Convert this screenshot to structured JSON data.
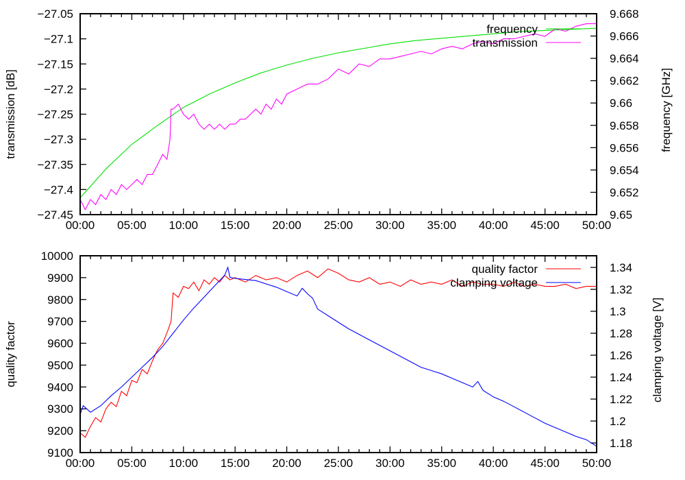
{
  "chart_data": [
    {
      "type": "line",
      "ylabel": "transmission [dB]",
      "y2label": "frequency [GHz]",
      "xlabel": "",
      "xlim": [
        0,
        50
      ],
      "xticks": [
        "00:00",
        "05:00",
        "10:00",
        "15:00",
        "20:00",
        "25:00",
        "30:00",
        "35:00",
        "40:00",
        "45:00",
        "50:00"
      ],
      "ylim": [
        -27.45,
        -27.05
      ],
      "yticks": [
        "-27.45",
        "-27.4",
        "-27.35",
        "-27.3",
        "-27.25",
        "-27.2",
        "-27.15",
        "-27.1",
        "-27.05"
      ],
      "y2lim": [
        9.65,
        9.668
      ],
      "y2ticks": [
        "9.65",
        "9.652",
        "9.654",
        "9.656",
        "9.658",
        "9.66",
        "9.662",
        "9.664",
        "9.666",
        "9.668"
      ],
      "legend_position": "top-right",
      "series": [
        {
          "name": "frequency",
          "axis": "y2",
          "color": "#00e000",
          "x": [
            0,
            2.5,
            5,
            7.5,
            10,
            12.5,
            15,
            17.5,
            20,
            22.5,
            25,
            27.5,
            30,
            32.5,
            35,
            37.5,
            40,
            42.5,
            45,
            47.5,
            50
          ],
          "y": [
            9.6515,
            9.6541,
            9.6563,
            9.658,
            9.6596,
            9.6608,
            9.6618,
            9.6627,
            9.6634,
            9.664,
            9.6645,
            9.6649,
            9.6653,
            9.6656,
            9.6658,
            9.666,
            9.6662,
            9.6664,
            9.6665,
            9.6666,
            9.6667
          ]
        },
        {
          "name": "transmission",
          "axis": "y",
          "color": "#ff00ff",
          "x": [
            0,
            0.5,
            1,
            1.5,
            2,
            2.5,
            3,
            3.5,
            4,
            4.5,
            5,
            5.5,
            6,
            6.5,
            7,
            7.5,
            8,
            8.4,
            8.7,
            8.8,
            9,
            9.5,
            10,
            10.5,
            11,
            11.5,
            12,
            12.5,
            13,
            13.5,
            14,
            14.5,
            15,
            15.5,
            16,
            16.5,
            17,
            17.5,
            18,
            18.5,
            19,
            19.5,
            20,
            21,
            22,
            23,
            24,
            25,
            26,
            27,
            28,
            29,
            30,
            31,
            32,
            33,
            34,
            35,
            36,
            37,
            38,
            39,
            40,
            41,
            42,
            43,
            44,
            45,
            46,
            47,
            48,
            49,
            50
          ],
          "y": [
            -27.42,
            -27.44,
            -27.42,
            -27.43,
            -27.41,
            -27.42,
            -27.4,
            -27.41,
            -27.39,
            -27.4,
            -27.39,
            -27.38,
            -27.39,
            -27.37,
            -27.37,
            -27.35,
            -27.33,
            -27.34,
            -27.3,
            -27.24,
            -27.24,
            -27.23,
            -27.25,
            -27.26,
            -27.25,
            -27.27,
            -27.28,
            -27.27,
            -27.28,
            -27.27,
            -27.28,
            -27.27,
            -27.27,
            -27.26,
            -27.26,
            -27.25,
            -27.24,
            -27.25,
            -27.23,
            -27.24,
            -27.22,
            -27.23,
            -27.21,
            -27.2,
            -27.19,
            -27.19,
            -27.18,
            -27.16,
            -27.17,
            -27.15,
            -27.155,
            -27.14,
            -27.14,
            -27.135,
            -27.13,
            -27.125,
            -27.13,
            -27.12,
            -27.115,
            -27.12,
            -27.11,
            -27.105,
            -27.11,
            -27.1,
            -27.1,
            -27.095,
            -27.09,
            -27.095,
            -27.08,
            -27.085,
            -27.075,
            -27.07,
            -27.07
          ]
        }
      ]
    },
    {
      "type": "line",
      "ylabel": "quality factor",
      "y2label": "clamping voltage [V]",
      "xlabel": "",
      "xlim": [
        0,
        50
      ],
      "xticks": [
        "00:00",
        "05:00",
        "10:00",
        "15:00",
        "20:00",
        "25:00",
        "30:00",
        "35:00",
        "40:00",
        "45:00",
        "50:00"
      ],
      "ylim": [
        9100,
        10000
      ],
      "yticks": [
        "9100",
        "9200",
        "9300",
        "9400",
        "9500",
        "9600",
        "9700",
        "9800",
        "9900",
        "10000"
      ],
      "y2lim": [
        1.17125,
        1.3506
      ],
      "y2ticks": [
        "1.18",
        "1.2",
        "1.22",
        "1.24",
        "1.26",
        "1.28",
        "1.3",
        "1.32",
        "1.34"
      ],
      "legend_position": "top-right",
      "series": [
        {
          "name": "quality factor",
          "axis": "y",
          "color": "#ff0000",
          "x": [
            0,
            0.5,
            1,
            1.5,
            2,
            2.5,
            3,
            3.5,
            4,
            4.5,
            5,
            5.5,
            6,
            6.5,
            7,
            7.5,
            8,
            8.5,
            8.8,
            9,
            9.5,
            10,
            10.5,
            11,
            11.5,
            12,
            12.5,
            13,
            13.5,
            14,
            14.5,
            15,
            16,
            17,
            18,
            19,
            20,
            21,
            22,
            23,
            24,
            25,
            26,
            27,
            28,
            29,
            30,
            31,
            32,
            33,
            34,
            35,
            36,
            37,
            38,
            39,
            40,
            41,
            42,
            43,
            44,
            45,
            46,
            47,
            48,
            49,
            50
          ],
          "y": [
            9190,
            9170,
            9220,
            9260,
            9240,
            9300,
            9330,
            9310,
            9380,
            9360,
            9430,
            9420,
            9480,
            9460,
            9520,
            9570,
            9600,
            9660,
            9700,
            9830,
            9810,
            9860,
            9850,
            9880,
            9840,
            9890,
            9870,
            9900,
            9880,
            9910,
            9890,
            9900,
            9880,
            9910,
            9890,
            9900,
            9880,
            9910,
            9930,
            9900,
            9940,
            9920,
            9890,
            9880,
            9900,
            9870,
            9880,
            9860,
            9890,
            9870,
            9880,
            9870,
            9890,
            9860,
            9880,
            9870,
            9870,
            9860,
            9880,
            9860,
            9870,
            9860,
            9860,
            9870,
            9850,
            9860,
            9860
          ]
        },
        {
          "name": "clamping voltage",
          "axis": "y2",
          "color": "#0000ff",
          "x": [
            0,
            0.3,
            1,
            2,
            3,
            4,
            5,
            6,
            7,
            8,
            9,
            10,
            11,
            12,
            13,
            14,
            14.3,
            14.5,
            15,
            16,
            17,
            18,
            19,
            20,
            21,
            21.5,
            22,
            22.5,
            23,
            24,
            25,
            26,
            27,
            28,
            29,
            30,
            31,
            32,
            33,
            34,
            35,
            36,
            37,
            38,
            38.5,
            39,
            40,
            41,
            42,
            43,
            44,
            45,
            46,
            47,
            48,
            49,
            50
          ],
          "y": [
            1.206,
            1.214,
            1.208,
            1.214,
            1.223,
            1.231,
            1.24,
            1.249,
            1.258,
            1.268,
            1.28,
            1.292,
            1.303,
            1.313,
            1.323,
            1.333,
            1.34,
            1.331,
            1.33,
            1.329,
            1.328,
            1.325,
            1.322,
            1.318,
            1.314,
            1.321,
            1.316,
            1.312,
            1.302,
            1.296,
            1.29,
            1.284,
            1.279,
            1.274,
            1.269,
            1.264,
            1.259,
            1.254,
            1.249,
            1.246,
            1.243,
            1.239,
            1.235,
            1.231,
            1.236,
            1.228,
            1.222,
            1.218,
            1.213,
            1.208,
            1.203,
            1.198,
            1.194,
            1.19,
            1.186,
            1.183,
            1.177
          ]
        }
      ]
    }
  ]
}
